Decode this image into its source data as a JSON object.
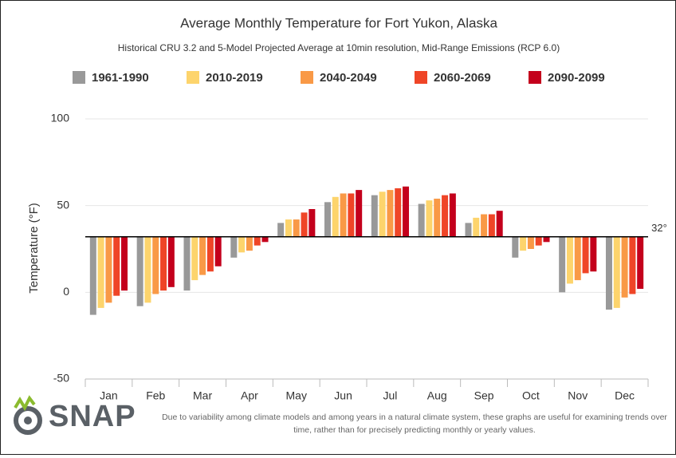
{
  "chart_data": {
    "type": "bar",
    "title": "Average Monthly Temperature for Fort Yukon, Alaska",
    "subtitle": "Historical CRU 3.2 and 5-Model Projected Average at 10min resolution, Mid-Range Emissions (RCP 6.0)",
    "y_label": "Temperature (°F)",
    "categories": [
      "Jan",
      "Feb",
      "Mar",
      "Apr",
      "May",
      "Jun",
      "Jul",
      "Aug",
      "Sep",
      "Oct",
      "Nov",
      "Dec"
    ],
    "series": [
      {
        "name": "1961-1990",
        "color": "#999999",
        "values": [
          -13,
          -8,
          1,
          20,
          40,
          52,
          56,
          51,
          40,
          20,
          0,
          -10
        ]
      },
      {
        "name": "2010-2019",
        "color": "#fdd46c",
        "values": [
          -9,
          -6,
          7,
          23,
          42,
          55,
          58,
          53,
          43,
          24,
          5,
          -9
        ]
      },
      {
        "name": "2040-2049",
        "color": "#f99946",
        "values": [
          -6,
          -1,
          10,
          24,
          42,
          57,
          59,
          54,
          45,
          25,
          7,
          -3
        ]
      },
      {
        "name": "2060-2069",
        "color": "#ef4527",
        "values": [
          -2,
          1,
          12,
          27,
          46,
          57,
          60,
          56,
          45,
          27,
          11,
          -1
        ]
      },
      {
        "name": "2090-2099",
        "color": "#c4001c",
        "values": [
          1,
          3,
          15,
          29,
          48,
          59,
          61,
          57,
          47,
          29,
          12,
          2
        ]
      }
    ],
    "baseline": {
      "value": 32,
      "label": "32°"
    },
    "ylim": [
      -50,
      100
    ],
    "yticks": [
      -50,
      0,
      50,
      100
    ],
    "grid": true
  },
  "footer_logo": "SNAP",
  "footer_note": "Due to variability among climate models and among years in a natural climate system, these graphs are useful for examining trends over time, rather than for precisely predicting monthly or yearly values."
}
